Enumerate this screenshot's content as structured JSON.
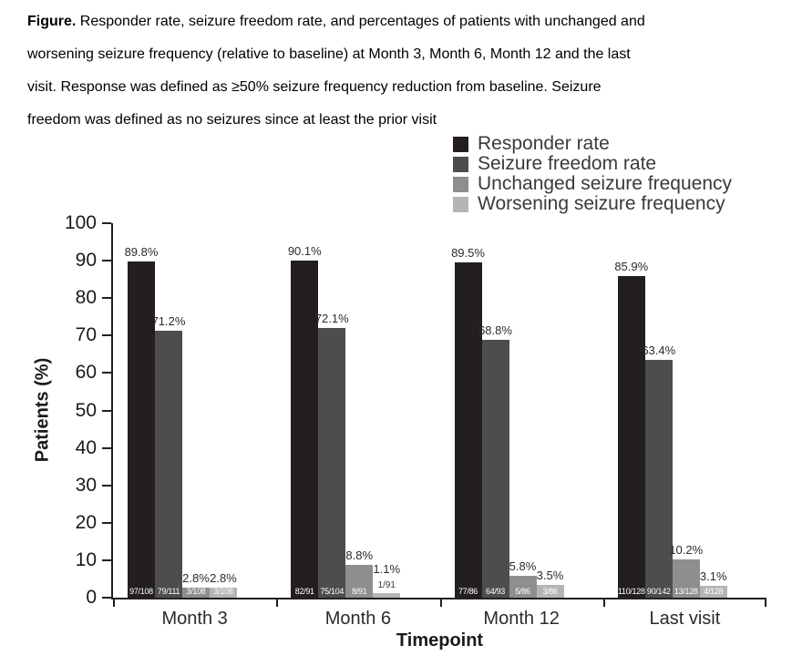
{
  "caption": {
    "lead": "Figure.",
    "line1": "Responder rate, seizure freedom rate, and percentages of patients with unchanged and",
    "line2": "worsening seizure frequency (relative to baseline) at Month 3, Month 6, Month 12 and the last",
    "line3": "visit. Response was defined as ≥50% seizure frequency reduction from baseline. Seizure",
    "line4": "freedom was defined as no seizures since at least the prior visit"
  },
  "chart_data": {
    "type": "bar",
    "title": "",
    "xlabel": "Timepoint",
    "ylabel": "Patients (%)",
    "ylim": [
      0,
      100
    ],
    "yticks": [
      0,
      10,
      20,
      30,
      40,
      50,
      60,
      70,
      80,
      90,
      100
    ],
    "grid": false,
    "legend_position": "top-right",
    "categories": [
      "Month 3",
      "Month 6",
      "Month 12",
      "Last visit"
    ],
    "series": [
      {
        "name": "Responder rate",
        "color": "#231f20",
        "values": [
          89.8,
          90.1,
          89.5,
          85.9
        ],
        "labels": [
          "89.8%",
          "90.1%",
          "89.5%",
          "85.9%"
        ],
        "fractions": [
          "97/108",
          "82/91",
          "77/86",
          "110/128"
        ]
      },
      {
        "name": "Seizure freedom rate",
        "color": "#4d4d4f",
        "values": [
          71.2,
          72.1,
          68.8,
          63.4
        ],
        "labels": [
          "71.2%",
          "72.1%",
          "68.8%",
          "63.4%"
        ],
        "fractions": [
          "79/111",
          "75/104",
          "64/93",
          "90/142"
        ]
      },
      {
        "name": "Unchanged seizure frequency",
        "color": "#8c8e90",
        "values": [
          2.8,
          8.8,
          5.8,
          10.2
        ],
        "labels": [
          "2.8%",
          "8.8%",
          "5.8%",
          "10.2%"
        ],
        "fractions": [
          "3/108",
          "8/91",
          "5/86",
          "13/128"
        ]
      },
      {
        "name": "Worsening seizure frequency",
        "color": "#b3b5b7",
        "values": [
          2.8,
          1.1,
          3.5,
          3.1
        ],
        "labels": [
          "2.8%",
          "1.1%",
          "3.5%",
          "3.1%"
        ],
        "fractions": [
          "3/108",
          "1/91",
          "3/86",
          "4/128"
        ]
      }
    ]
  }
}
